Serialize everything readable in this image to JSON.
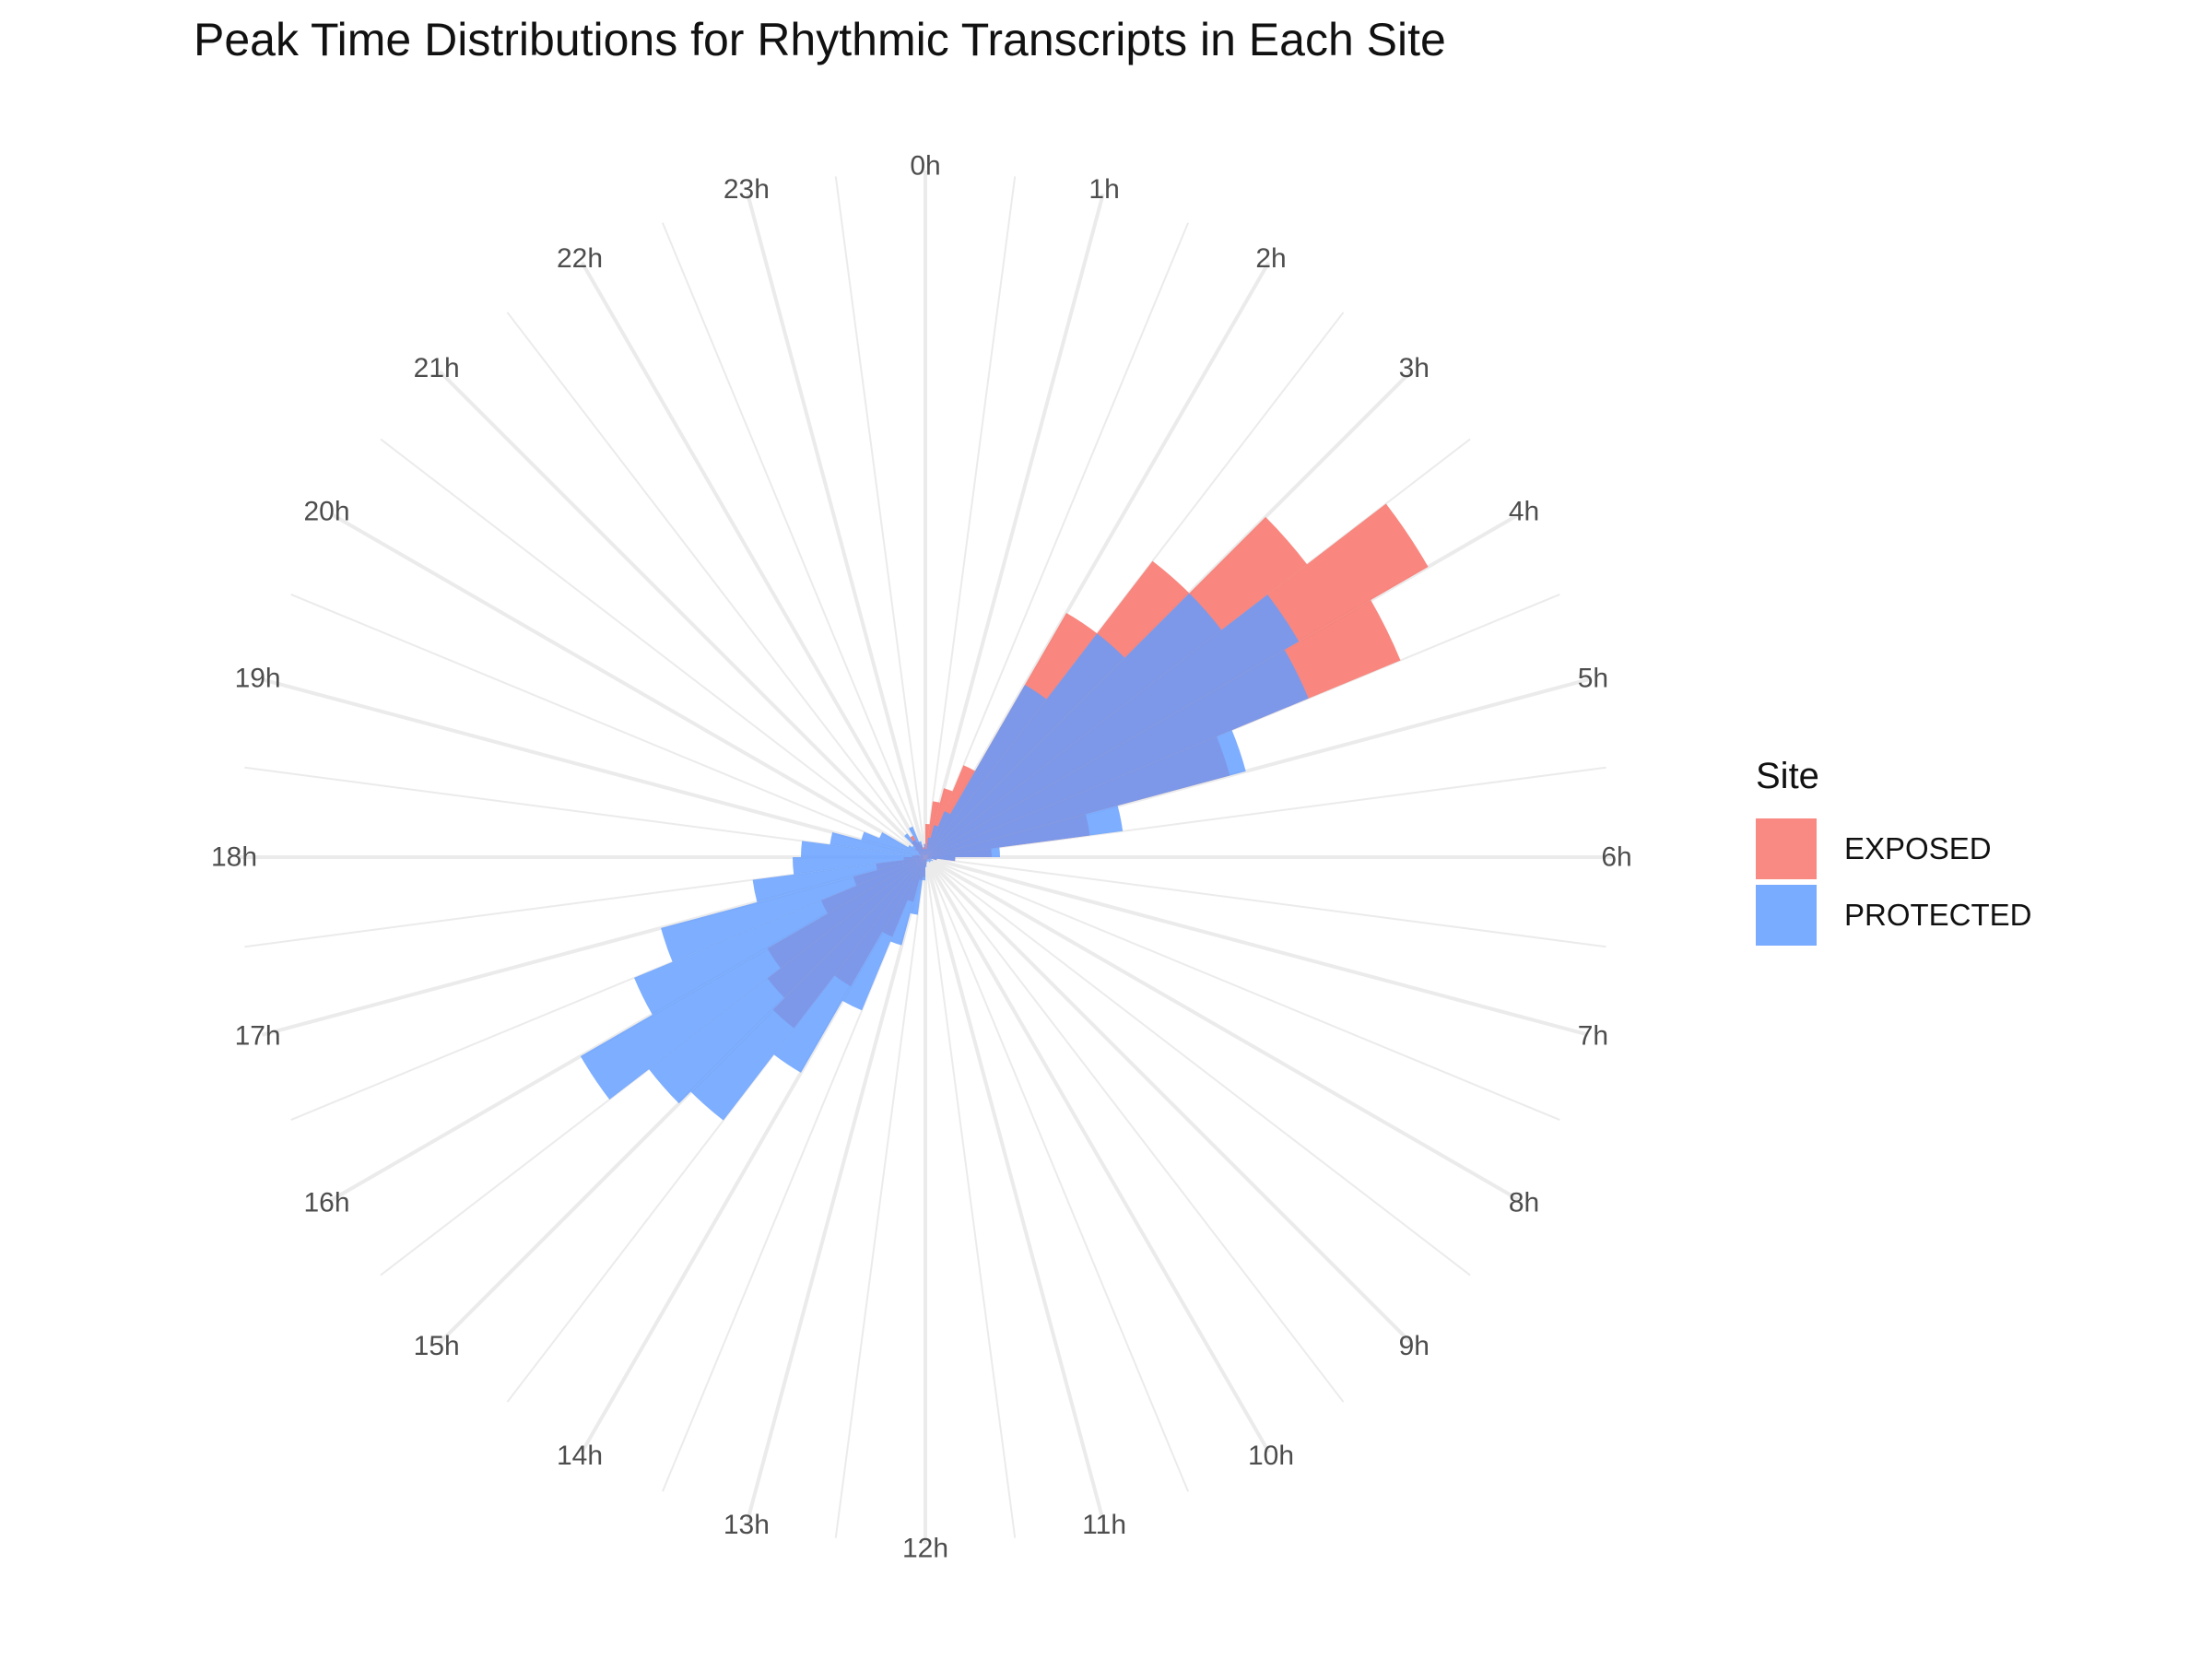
{
  "chart_data": {
    "type": "polar-histogram",
    "title": "Peak Time Distributions for Rhythmic Transcripts in Each Site",
    "xlabel": "",
    "ylabel": "",
    "bin_width_hours": 0.5,
    "x_range_hours": [
      0,
      24
    ],
    "theta_ticks": [
      "0h",
      "1h",
      "2h",
      "3h",
      "4h",
      "5h",
      "6h",
      "7h",
      "8h",
      "9h",
      "10h",
      "11h",
      "12h",
      "13h",
      "14h",
      "15h",
      "16h",
      "17h",
      "18h",
      "19h",
      "20h",
      "21h",
      "22h",
      "23h"
    ],
    "legend": {
      "title": "Site",
      "placement": "right"
    },
    "overlap": true,
    "grid": true,
    "series": [
      {
        "name": "EXPOSED",
        "color": "#F8766D",
        "values": [
          20,
          34,
          43,
          60,
          170,
          225,
          290,
          350,
          310,
          190,
          100,
          40,
          18,
          7,
          3,
          3,
          2,
          2,
          2,
          2,
          2,
          2,
          3,
          5,
          12,
          14,
          28,
          52,
          90,
          130,
          120,
          110,
          68,
          45,
          30,
          13,
          8,
          6,
          3,
          4,
          5,
          8,
          12,
          15,
          10,
          8,
          6,
          6
        ]
      },
      {
        "name": "PROTECTED",
        "color": "#619CFF",
        "values": [
          5,
          12,
          20,
          30,
          120,
          170,
          225,
          260,
          250,
          200,
          120,
          45,
          18,
          7,
          4,
          5,
          4,
          4,
          4,
          3,
          3,
          3,
          4,
          6,
          14,
          35,
          55,
          100,
          150,
          200,
          210,
          240,
          190,
          165,
          105,
          80,
          75,
          58,
          40,
          30,
          12,
          10,
          18,
          12,
          20,
          10,
          5,
          8
        ]
      }
    ]
  }
}
